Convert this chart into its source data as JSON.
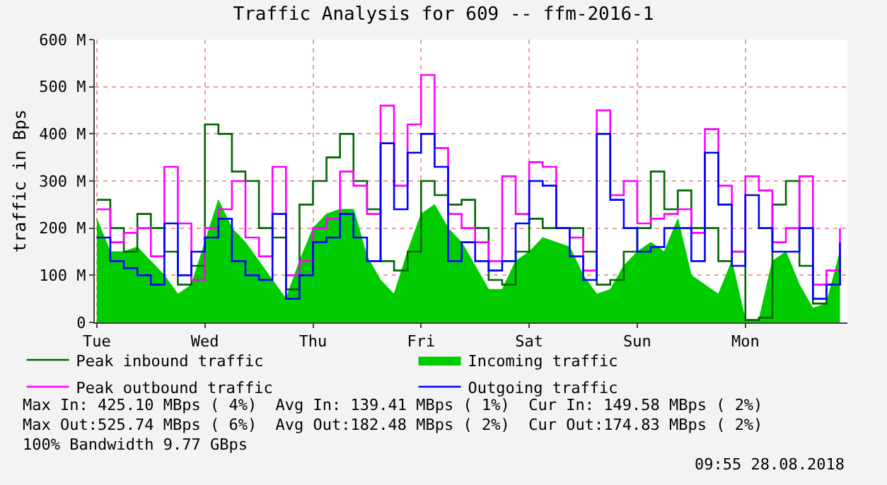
{
  "chart_data": {
    "type": "step",
    "title": "Traffic Analysis for 609 -- ffm-2016-1",
    "ylabel": "traffic in Bps",
    "categories": [
      "Tue",
      null,
      null,
      null,
      null,
      null,
      null,
      null,
      "Wed",
      null,
      null,
      null,
      null,
      null,
      null,
      null,
      "Thu",
      null,
      null,
      null,
      null,
      null,
      null,
      null,
      "Fri",
      null,
      null,
      null,
      null,
      null,
      null,
      null,
      "Sat",
      null,
      null,
      null,
      null,
      null,
      null,
      null,
      "Sun",
      null,
      null,
      null,
      null,
      null,
      null,
      null,
      "Mon",
      null,
      null,
      null,
      null,
      null,
      null,
      null
    ],
    "series": [
      {
        "name": "Peak inbound traffic",
        "color": "#006600",
        "values": [
          260,
          200,
          150,
          230,
          200,
          150,
          80,
          120,
          420,
          400,
          320,
          300,
          200,
          180,
          70,
          250,
          300,
          350,
          400,
          300,
          240,
          130,
          110,
          150,
          300,
          270,
          250,
          260,
          200,
          90,
          80,
          150,
          220,
          200,
          200,
          200,
          150,
          80,
          90,
          150,
          200,
          320,
          240,
          280,
          200,
          200,
          130,
          150,
          5,
          10,
          250,
          300,
          120,
          40,
          80,
          150
        ]
      },
      {
        "name": "Incoming traffic",
        "type": "area",
        "color": "#00cc00",
        "values": [
          220,
          150,
          150,
          160,
          130,
          100,
          60,
          80,
          170,
          260,
          200,
          170,
          130,
          90,
          50,
          130,
          200,
          230,
          240,
          240,
          140,
          90,
          60,
          150,
          230,
          250,
          200,
          170,
          120,
          70,
          70,
          130,
          150,
          180,
          170,
          160,
          100,
          60,
          70,
          120,
          150,
          170,
          150,
          220,
          100,
          80,
          60,
          130,
          5,
          5,
          130,
          150,
          80,
          30,
          40,
          150
        ]
      },
      {
        "name": "Peak outbound traffic",
        "color": "#ff00ff",
        "values": [
          240,
          170,
          190,
          200,
          140,
          330,
          210,
          90,
          200,
          240,
          300,
          180,
          140,
          330,
          100,
          130,
          200,
          220,
          320,
          290,
          230,
          460,
          290,
          420,
          525,
          370,
          230,
          200,
          170,
          130,
          310,
          230,
          340,
          330,
          200,
          180,
          110,
          450,
          270,
          300,
          210,
          220,
          230,
          240,
          190,
          410,
          290,
          150,
          310,
          280,
          170,
          200,
          310,
          80,
          110,
          200
        ]
      },
      {
        "name": "Outgoing traffic",
        "color": "#0000ff",
        "values": [
          180,
          130,
          115,
          100,
          80,
          210,
          100,
          150,
          180,
          220,
          130,
          100,
          90,
          230,
          50,
          100,
          170,
          180,
          230,
          180,
          130,
          380,
          240,
          360,
          400,
          330,
          130,
          170,
          130,
          110,
          130,
          210,
          300,
          290,
          200,
          140,
          90,
          400,
          260,
          200,
          150,
          160,
          200,
          200,
          130,
          360,
          250,
          120,
          270,
          200,
          150,
          150,
          200,
          50,
          80,
          170
        ]
      }
    ],
    "ylim": [
      0,
      600
    ],
    "yticks": [
      0,
      {
        "value": 100,
        "label": "100 M"
      },
      {
        "value": 200,
        "label": "200 M"
      },
      {
        "value": 300,
        "label": "300 M"
      },
      {
        "value": 400,
        "label": "400 M"
      },
      {
        "value": 500,
        "label": "500 M"
      },
      {
        "value": 600,
        "label": "600 M"
      }
    ],
    "grid": true,
    "legend": "bottom",
    "annotations": [
      "Max In: 425.10 MBps ( 4%)  Avg In: 139.41 MBps ( 1%)  Cur In: 149.58 MBps ( 2%)",
      "Max Out:525.74 MBps ( 6%)  Avg Out:182.48 MBps ( 2%)  Cur Out:174.83 MBps ( 2%)",
      "100% Bandwidth 9.77 GBps",
      "09:55 28.08.2018"
    ]
  }
}
